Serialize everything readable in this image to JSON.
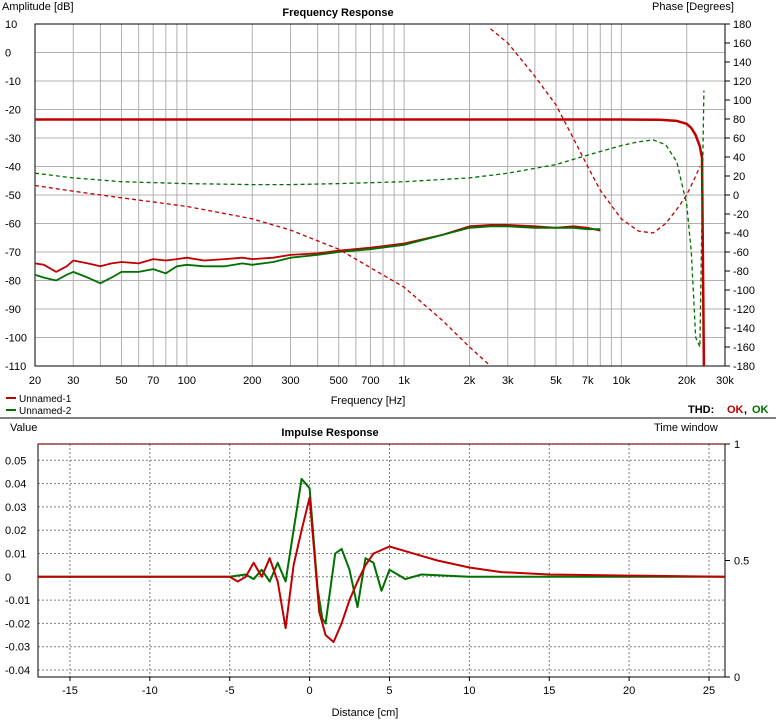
{
  "freq_chart": {
    "title": "Frequency Response",
    "left_axis_title": "Amplitude [dB]",
    "right_axis_title": "Phase [Degrees]",
    "xlabel": "Frequency [Hz]",
    "x_ticks": [
      "20",
      "30",
      "50",
      "70",
      "100",
      "200",
      "300",
      "500",
      "700",
      "1k",
      "2k",
      "3k",
      "5k",
      "7k",
      "10k",
      "20k",
      "30k"
    ],
    "x_tick_values": [
      20,
      30,
      50,
      70,
      100,
      200,
      300,
      500,
      700,
      1000,
      2000,
      3000,
      5000,
      7000,
      10000,
      20000,
      30000
    ],
    "y_ticks": [
      "10",
      "0",
      "-10",
      "-20",
      "-30",
      "-40",
      "-50",
      "-60",
      "-70",
      "-80",
      "-90",
      "-100",
      "-110"
    ],
    "y_tick_values": [
      10,
      0,
      -10,
      -20,
      -30,
      -40,
      -50,
      -60,
      -70,
      -80,
      -90,
      -100,
      -110
    ],
    "phase_ticks": [
      "180",
      "160",
      "140",
      "120",
      "100",
      "80",
      "60",
      "40",
      "20",
      "0",
      "-20",
      "-40",
      "-60",
      "-80",
      "-100",
      "-120",
      "-140",
      "-160",
      "-180"
    ],
    "phase_tick_values": [
      180,
      160,
      140,
      120,
      100,
      80,
      60,
      40,
      20,
      0,
      -20,
      -40,
      -60,
      -80,
      -100,
      -120,
      -140,
      -160,
      -180
    ],
    "legend": [
      "Unnamed-1",
      "Unnamed-2"
    ],
    "thd_label": "THD:",
    "thd_values": [
      "OK",
      "OK"
    ]
  },
  "impulse_chart": {
    "title": "Impulse Response",
    "left_axis_title": "Value",
    "right_axis_title": "Time window",
    "xlabel": "Distance [cm]",
    "x_ticks": [
      "-15",
      "-10",
      "-5",
      "0",
      "5",
      "10",
      "15",
      "20",
      "25"
    ],
    "x_tick_values": [
      -15,
      -10,
      -5,
      0,
      5,
      10,
      15,
      20,
      25
    ],
    "y_ticks": [
      "0.05",
      "0.04",
      "0.03",
      "0.02",
      "0.01",
      "0",
      "-0.01",
      "-0.02",
      "-0.03",
      "-0.04"
    ],
    "y_tick_values": [
      0.05,
      0.04,
      0.03,
      0.02,
      0.01,
      0,
      -0.01,
      -0.02,
      -0.03,
      -0.04
    ],
    "right_ticks": [
      "1",
      "0.5",
      "0"
    ],
    "right_tick_values": [
      1,
      0.5,
      0
    ]
  },
  "colors": {
    "series1": "#c00000",
    "series2": "#007000",
    "ok": "#c00000",
    "ok2": "#007000"
  },
  "chart_data": [
    {
      "type": "line",
      "title": "Frequency Response",
      "xlabel": "Frequency [Hz]",
      "ylabel": "Amplitude [dB]",
      "y2label": "Phase [Degrees]",
      "xscale": "log",
      "xlim": [
        20,
        30000
      ],
      "ylim": [
        -110,
        10
      ],
      "y2lim": [
        -180,
        180
      ],
      "grid": true,
      "legend": "bottom-left",
      "series": [
        {
          "name": "Unnamed-1",
          "quantity": "amplitude",
          "style": "solid",
          "x": [
            20,
            1000,
            10000,
            15000,
            18000,
            20000,
            21000,
            22000,
            23000,
            23500,
            24000
          ],
          "y": [
            -23.5,
            -23.5,
            -23.5,
            -23.6,
            -24,
            -25,
            -26.5,
            -29,
            -33,
            -37,
            -110
          ]
        },
        {
          "name": "Unnamed-1",
          "quantity": "amplitude",
          "style": "solid-thin",
          "x": [
            20,
            22,
            25,
            28,
            30,
            35,
            40,
            45,
            50,
            60,
            70,
            80,
            90,
            100,
            120,
            150,
            180,
            200,
            250,
            300,
            400,
            500,
            700,
            1000,
            1500,
            2000,
            2500,
            3000,
            4000,
            5000,
            6000,
            7000,
            8000
          ],
          "y": [
            -74,
            -74.5,
            -77,
            -75,
            -73,
            -74,
            -75,
            -74,
            -73.5,
            -74,
            -72.5,
            -73,
            -72.5,
            -72,
            -73,
            -72.5,
            -72,
            -72.5,
            -72,
            -71,
            -70.5,
            -69.5,
            -68.5,
            -67,
            -64,
            -61,
            -60.5,
            -60.5,
            -61,
            -61.5,
            -61,
            -61.5,
            -62.5
          ]
        },
        {
          "name": "Unnamed-2",
          "quantity": "amplitude",
          "style": "solid-thin",
          "x": [
            20,
            22,
            25,
            28,
            30,
            35,
            40,
            45,
            50,
            60,
            70,
            80,
            90,
            100,
            120,
            150,
            180,
            200,
            250,
            300,
            400,
            500,
            700,
            1000,
            1500,
            2000,
            2500,
            3000,
            4000,
            5000,
            6000,
            7000,
            8000
          ],
          "y": [
            -78,
            -79,
            -80,
            -78,
            -77,
            -79,
            -81,
            -79,
            -77,
            -77,
            -76,
            -77.5,
            -75,
            -74.5,
            -75,
            -75,
            -74,
            -74.5,
            -73.5,
            -72,
            -71,
            -70,
            -69,
            -67.5,
            -64,
            -61.5,
            -61,
            -61,
            -61.5,
            -61.5,
            -61.5,
            -62,
            -62
          ]
        },
        {
          "name": "Unnamed-1",
          "quantity": "phase",
          "style": "dashed",
          "x": [
            20,
            30,
            50,
            100,
            200,
            300,
            500,
            1000,
            1500,
            2000,
            2500
          ],
          "y": [
            10,
            4,
            -3,
            -12,
            -25,
            -37,
            -57,
            -97,
            -132,
            -160,
            -180
          ]
        },
        {
          "name": "Unnamed-1",
          "quantity": "phase",
          "style": "dashed",
          "x": [
            2500,
            3000,
            4000,
            5000,
            6000,
            7000,
            8000,
            10000,
            12000,
            14000,
            16000,
            18000,
            20000,
            22000,
            23000
          ],
          "y": [
            175,
            160,
            125,
            95,
            60,
            30,
            5,
            -25,
            -38,
            -40,
            -30,
            -15,
            0,
            20,
            30
          ]
        },
        {
          "name": "Unnamed-2",
          "quantity": "phase",
          "style": "dashed",
          "x": [
            20,
            30,
            50,
            100,
            200,
            300,
            500,
            1000,
            2000,
            3000,
            5000,
            7000,
            10000,
            12000,
            14000,
            16000,
            18000,
            20000,
            21000,
            22000,
            23000,
            24000
          ],
          "y": [
            23,
            18,
            14,
            12,
            11,
            11,
            12,
            14,
            18,
            23,
            32,
            42,
            52,
            56,
            58,
            53,
            35,
            -10,
            -60,
            -150,
            -160,
            110
          ]
        }
      ]
    },
    {
      "type": "line",
      "title": "Impulse Response",
      "xlabel": "Distance [cm]",
      "ylabel": "Value",
      "y2label": "Time window",
      "xlim": [
        -17,
        26
      ],
      "ylim": [
        -0.043,
        0.057
      ],
      "y2lim": [
        0,
        1
      ],
      "grid": true,
      "series": [
        {
          "name": "Unnamed-2",
          "quantity": "impulse",
          "x": [
            -17,
            -5,
            -4,
            -3.5,
            -3,
            -2.5,
            -2,
            -1.5,
            -1,
            -0.5,
            0,
            0.5,
            0.8,
            1,
            1.3,
            1.6,
            2,
            2.5,
            3,
            3.5,
            4,
            4.5,
            5,
            6,
            7,
            10,
            15,
            20,
            26
          ],
          "y": [
            0,
            0,
            0.001,
            -0.001,
            0.003,
            -0.002,
            0.006,
            -0.002,
            0.02,
            0.042,
            0.038,
            -0.005,
            -0.018,
            -0.02,
            -0.005,
            0.01,
            0.012,
            0.003,
            -0.013,
            0.008,
            0.006,
            -0.006,
            0.003,
            -0.001,
            0.001,
            0,
            0,
            0,
            0
          ]
        },
        {
          "name": "Unnamed-1",
          "quantity": "impulse",
          "x": [
            -17,
            -5,
            -4.5,
            -4,
            -3.5,
            -3,
            -2.5,
            -2,
            -1.5,
            -1,
            -0.5,
            0,
            0.3,
            0.6,
            1,
            1.5,
            2,
            2.5,
            3,
            3.5,
            4,
            5,
            6,
            7,
            8,
            10,
            12,
            15,
            20,
            26
          ],
          "y": [
            0,
            0,
            -0.002,
            0,
            0.006,
            0,
            0.008,
            -0.002,
            -0.022,
            0.005,
            0.02,
            0.034,
            0.01,
            -0.015,
            -0.025,
            -0.028,
            -0.02,
            -0.01,
            -0.002,
            0.005,
            0.01,
            0.013,
            0.011,
            0.009,
            0.007,
            0.004,
            0.002,
            0.001,
            0.0005,
            0
          ]
        },
        {
          "name": "Time window",
          "quantity": "window",
          "style": "dotted",
          "x": [
            -17,
            26
          ],
          "y": [
            1,
            1
          ]
        }
      ]
    }
  ]
}
